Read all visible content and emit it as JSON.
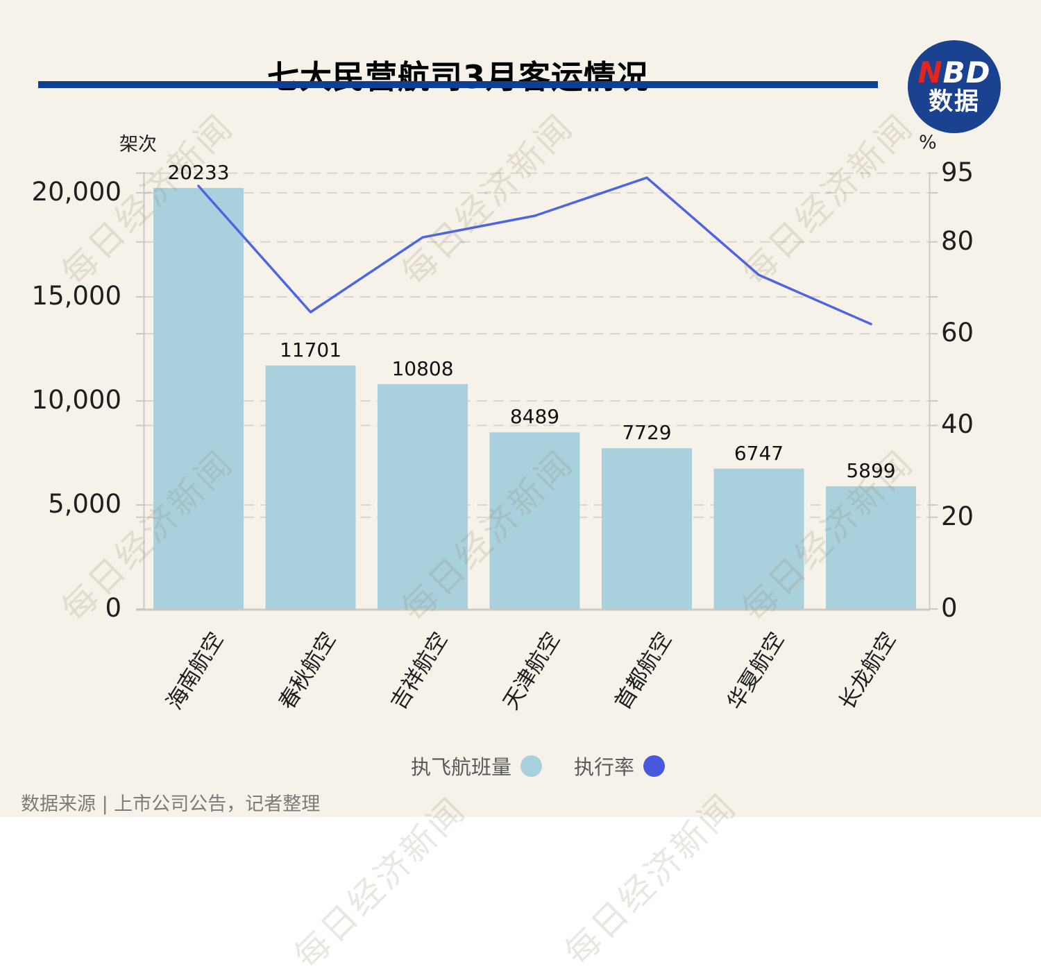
{
  "header": {
    "title": "七大民营航司3月客运情况"
  },
  "logo": {
    "n": "N",
    "bd": "BD",
    "sub": "数据",
    "bg": "#1a4291",
    "n_color": "#e3251e"
  },
  "axes": {
    "left": {
      "unit": "架次",
      "ticks": [
        {
          "label": "20,000",
          "value": 20000
        },
        {
          "label": "15,000",
          "value": 15000
        },
        {
          "label": "10,000",
          "value": 10000
        },
        {
          "label": "5,000",
          "value": 5000
        },
        {
          "label": "0",
          "value": 0
        }
      ]
    },
    "right": {
      "unit": "%",
      "ticks": [
        {
          "label": "95",
          "value": 95
        },
        {
          "label": "80",
          "value": 80
        },
        {
          "label": "60",
          "value": 60
        },
        {
          "label": "40",
          "value": 40
        },
        {
          "label": "20",
          "value": 20
        },
        {
          "label": "0",
          "value": 0
        }
      ]
    }
  },
  "legend": {
    "items": [
      {
        "label": "执飞航班量",
        "color": "#a9d0dd"
      },
      {
        "label": "执行率",
        "color": "#4759df"
      }
    ]
  },
  "footer": {
    "source": "数据来源 | 上市公司公告，记者整理"
  },
  "watermark": {
    "text": "每日经济新闻"
  },
  "colors": {
    "background": "#f6f2e9",
    "bar": "#a9d0dd",
    "line": "#4d64e4",
    "grid": "#d9d5cd",
    "axis": "#cdc9c1",
    "underline": "#103e93"
  },
  "chart_data": {
    "type": "bar+line dual-axis",
    "title": "七大民营航司3月客运情况",
    "categories": [
      "海南航空",
      "春秋航空",
      "吉祥航空",
      "天津航空",
      "首都航空",
      "华夏航空",
      "长龙航空"
    ],
    "series": [
      {
        "name": "执飞航班量",
        "type": "bar",
        "axis": "left",
        "unit": "架次",
        "values": [
          20233,
          11701,
          10808,
          8489,
          7729,
          6747,
          5899
        ],
        "labels": [
          "20233",
          "11701",
          "10808",
          "8489",
          "7729",
          "6747",
          "5899"
        ],
        "color": "#a9d0dd"
      },
      {
        "name": "执行率",
        "type": "line",
        "axis": "right",
        "unit": "%",
        "values": [
          92.2,
          64.7,
          81.0,
          85.7,
          94.0,
          72.8,
          62.1
        ],
        "values_estimated": true,
        "color": "#4d64e4"
      }
    ],
    "left_ylim": [
      0,
      20000
    ],
    "right_ylim": [
      0,
      95
    ],
    "grid": "dashed horizontal lines at both axes' tick values",
    "legend_position": "bottom-center"
  }
}
